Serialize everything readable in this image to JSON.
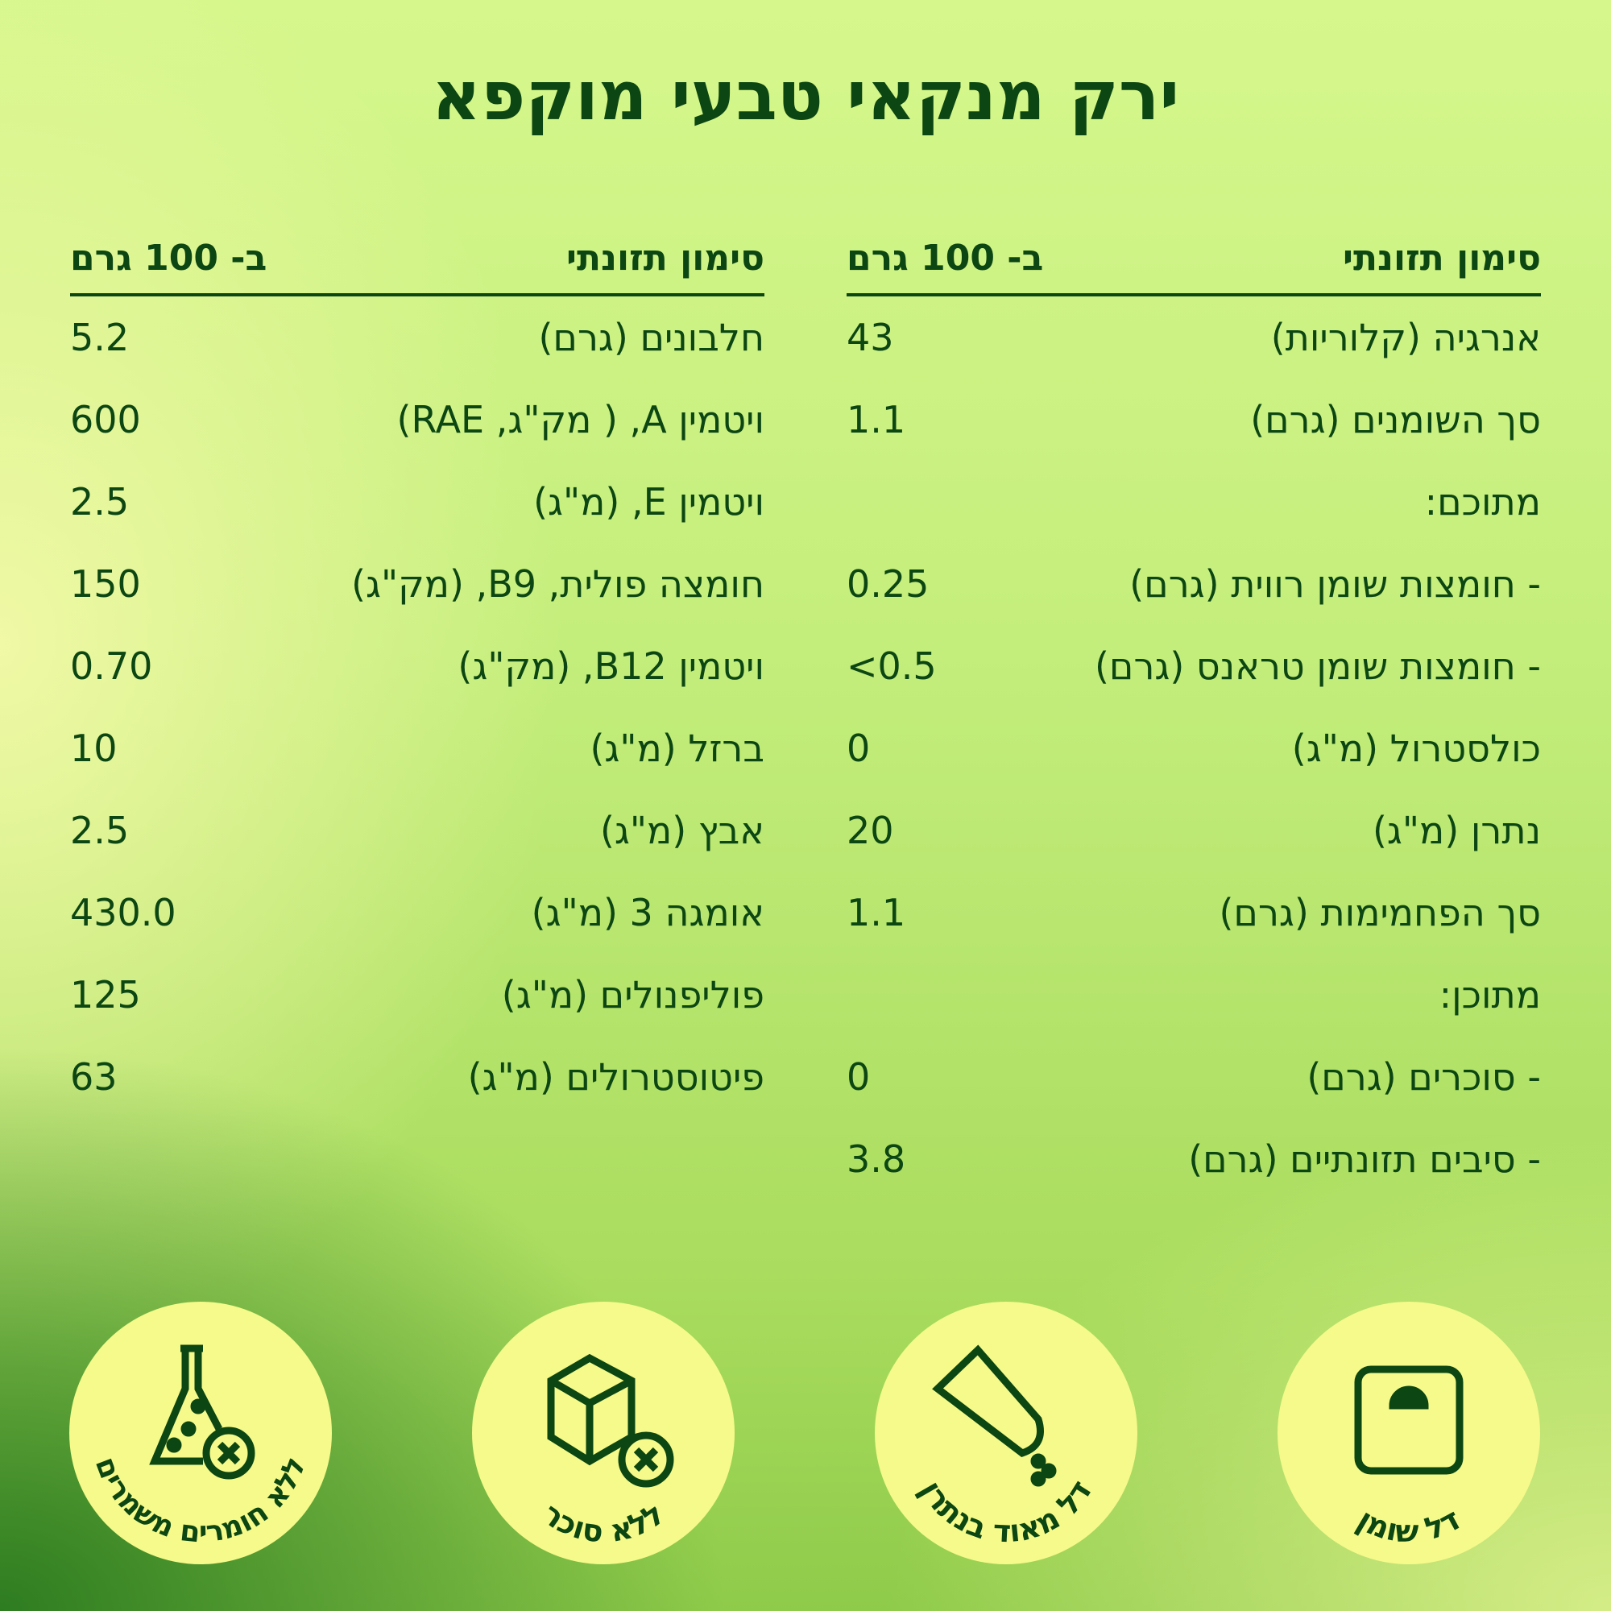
{
  "title": "ירק מנקאי טבעי מוקפא",
  "tables": [
    {
      "header": {
        "label": "סימון תזונתי",
        "value": "ב- 100 גרם"
      },
      "rows": [
        {
          "label": "אנרגיה (קלוריות)",
          "value": "43"
        },
        {
          "label": "סך השומנים (גרם)",
          "value": "1.1"
        },
        {
          "label": "מתוכם:",
          "value": ""
        },
        {
          "label": "- חומצות שומן רווית (גרם)",
          "value": "0.25"
        },
        {
          "label": "- חומצות שומן טראנס (גרם)",
          "value": "<0.5"
        },
        {
          "label": "כולסטרול (מ\"ג)",
          "value": "0"
        },
        {
          "label": "נתרן (מ\"ג)",
          "value": "20"
        },
        {
          "label": "סך הפחמימות (גרם)",
          "value": "1.1"
        },
        {
          "label": "מתוכן:",
          "value": ""
        },
        {
          "label": "- סוכרים (גרם)",
          "value": "0"
        },
        {
          "label": "- סיבים תזונתיים (גרם)",
          "value": "3.8"
        }
      ]
    },
    {
      "header": {
        "label": "סימון תזונתי",
        "value": "ב- 100 גרם"
      },
      "rows": [
        {
          "label": "חלבונים (גרם)",
          "value": "5.2"
        },
        {
          "label": "ויטמין A, ( מק\"ג, RAE)",
          "value": "600"
        },
        {
          "label": "ויטמין E, (מ\"ג)",
          "value": "2.5"
        },
        {
          "label": "חומצה פולית, B9, (מק\"ג)",
          "value": "150"
        },
        {
          "label": "ויטמין B12, (מק\"ג)",
          "value": "0.70"
        },
        {
          "label": "ברזל (מ\"ג)",
          "value": "10"
        },
        {
          "label": "אבץ (מ\"ג)",
          "value": "2.5"
        },
        {
          "label": "אומגה 3 (מ\"ג)",
          "value": "430.0"
        },
        {
          "label": "פוליפנולים (מ\"ג)",
          "value": "125"
        },
        {
          "label": "פיטוסטרולים (מ\"ג)",
          "value": "63"
        }
      ]
    }
  ],
  "badges": [
    {
      "label": "דל שומן",
      "icon": "scale-icon"
    },
    {
      "label": "דל מאוד בנתרן",
      "icon": "salt-shaker-icon"
    },
    {
      "label": "ללא סוכר",
      "icon": "sugar-cube-icon"
    },
    {
      "label": "ללא חומרים משמרים",
      "icon": "flask-icon"
    }
  ],
  "colors": {
    "text": "#0c4612",
    "badge": "#f6fa8a"
  }
}
